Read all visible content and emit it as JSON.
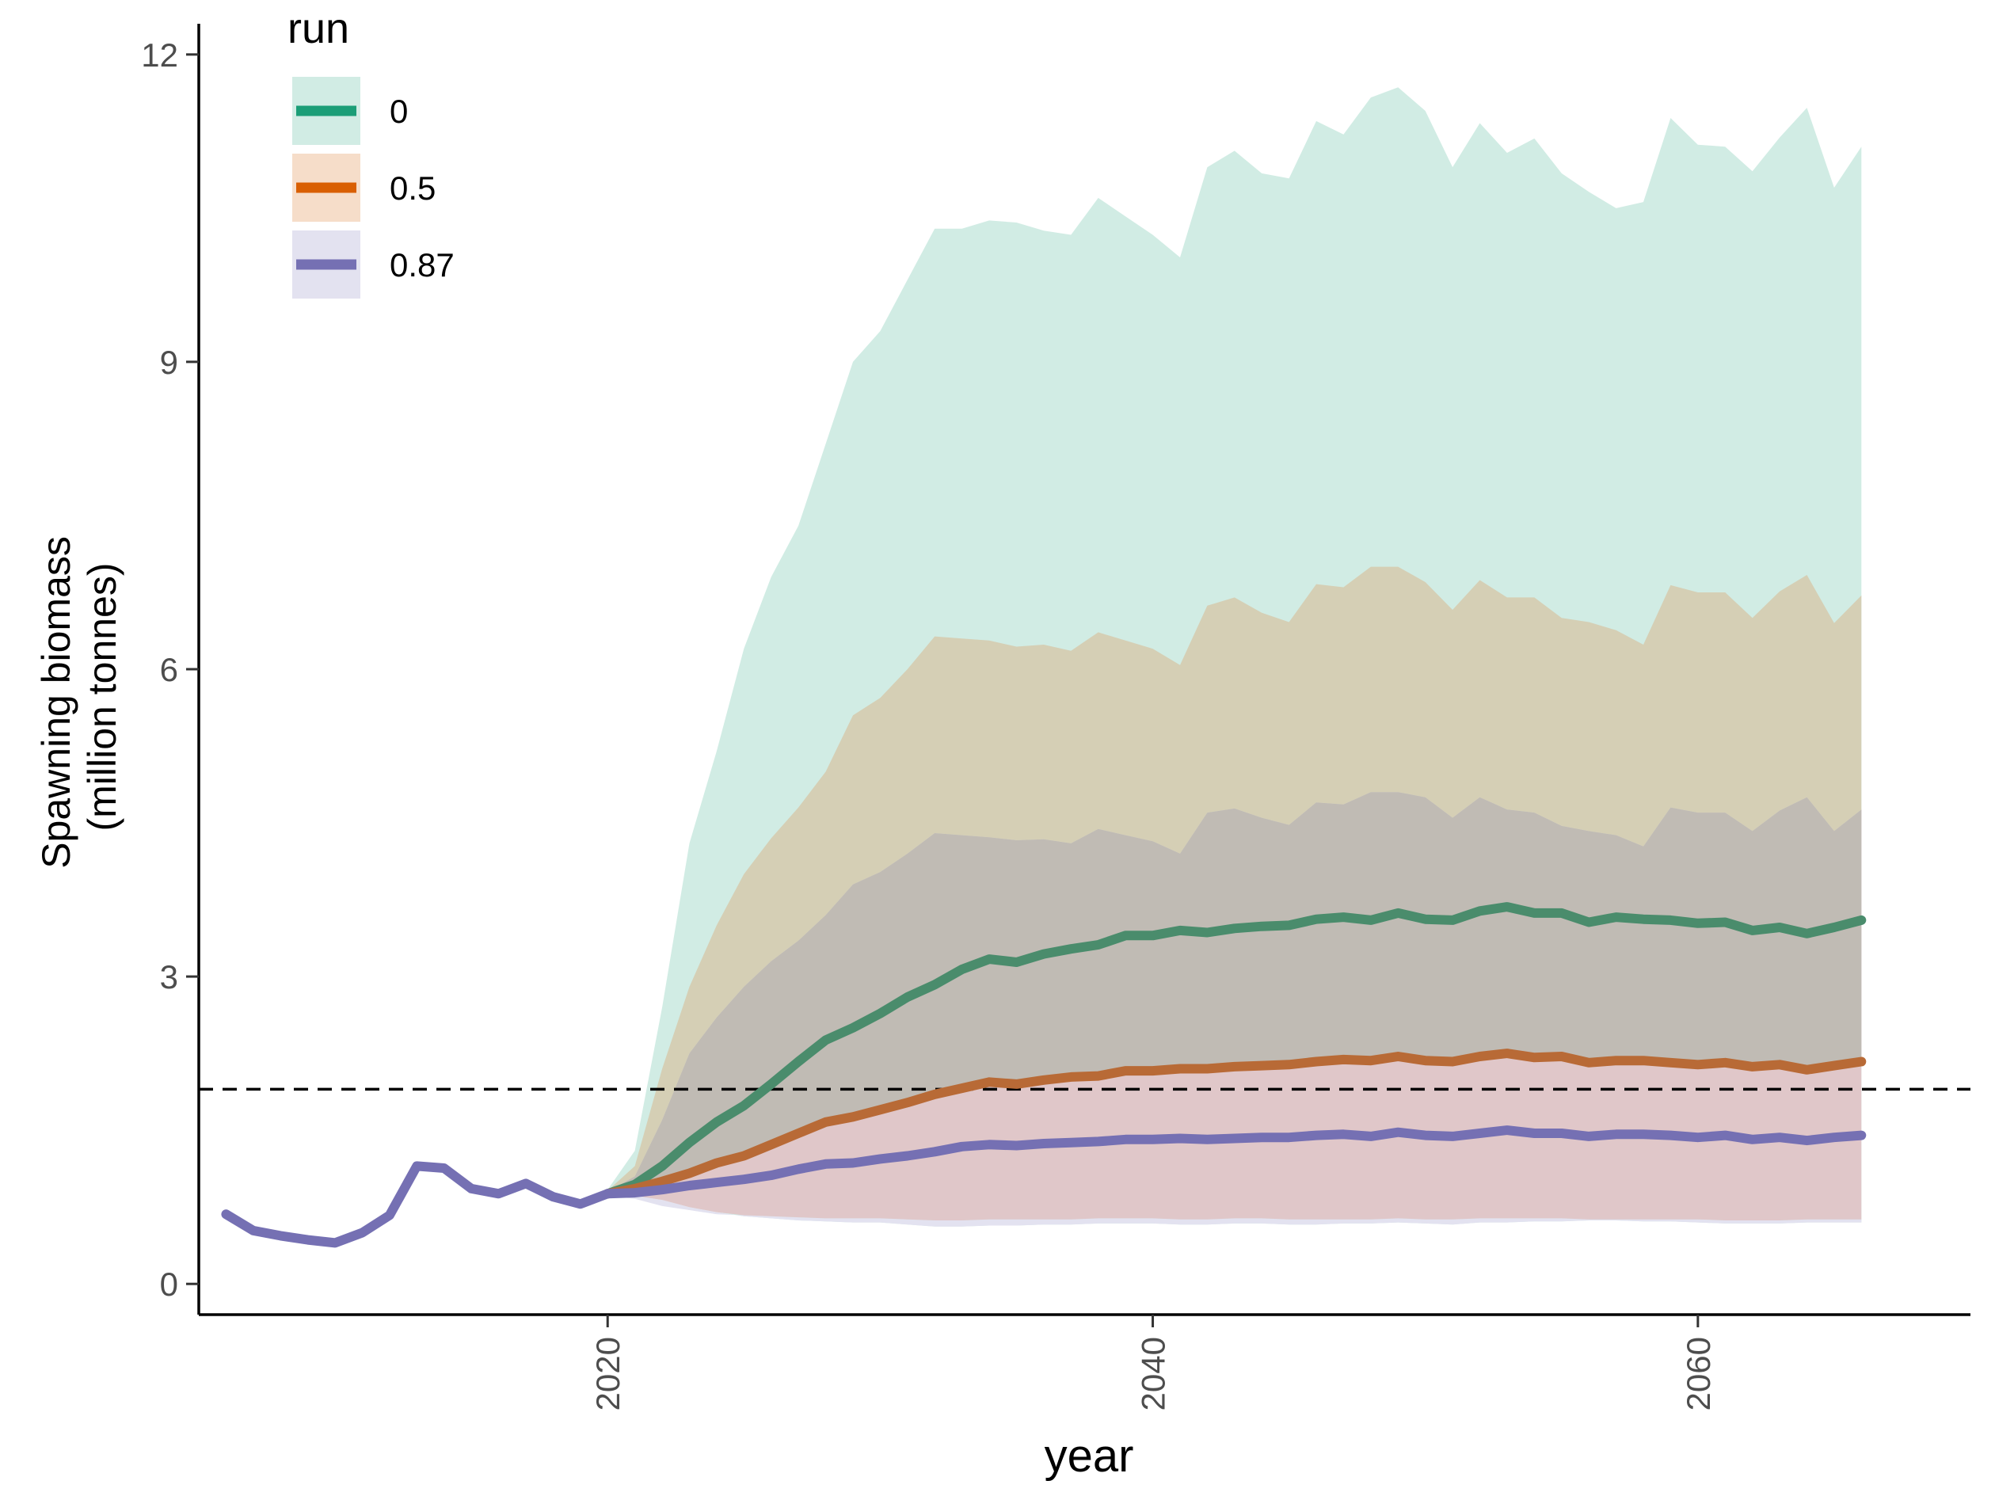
{
  "chart_data": {
    "type": "line",
    "title": "",
    "xlabel": "year",
    "ylabel": [
      "Spawning biomass",
      "(million tonnes)"
    ],
    "xlim": [
      2005,
      2070
    ],
    "ylim": [
      -0.3,
      12.3
    ],
    "xticks": [
      2020,
      2040,
      2060
    ],
    "yticks": [
      0,
      3,
      6,
      9,
      12
    ],
    "reference_line": {
      "y": 1.9,
      "style": "dashed",
      "color": "#000000"
    },
    "legend": {
      "title": "run",
      "position": "top-left",
      "entries": [
        {
          "label": "0",
          "color": "#1b9e77",
          "band_color": "#d1ece4"
        },
        {
          "label": "0.5",
          "color": "#d95f02",
          "band_color": "#f6ddc9"
        },
        {
          "label": "0.87",
          "color": "#7570b3",
          "band_color": "#e3e2f0"
        }
      ]
    },
    "historical": {
      "x": [
        2006,
        2007,
        2008,
        2009,
        2010,
        2011,
        2012,
        2013,
        2014,
        2015,
        2016,
        2017,
        2018,
        2019,
        2020
      ],
      "y": [
        0.68,
        0.52,
        0.47,
        0.43,
        0.4,
        0.5,
        0.67,
        1.15,
        1.13,
        0.93,
        0.88,
        0.98,
        0.85,
        0.78,
        0.88
      ]
    },
    "projection_x": [
      2020,
      2021,
      2022,
      2023,
      2024,
      2025,
      2026,
      2027,
      2028,
      2029,
      2030,
      2031,
      2032,
      2033,
      2034,
      2035,
      2036,
      2037,
      2038,
      2039,
      2040,
      2041,
      2042,
      2043,
      2044,
      2045,
      2046,
      2047,
      2048,
      2049,
      2050,
      2051,
      2052,
      2053,
      2054,
      2055,
      2056,
      2057,
      2058,
      2059,
      2060,
      2061,
      2062,
      2063,
      2064,
      2065,
      2066
    ],
    "series": [
      {
        "name": "0",
        "median": [
          0.88,
          0.97,
          1.15,
          1.38,
          1.58,
          1.74,
          1.95,
          2.17,
          2.38,
          2.5,
          2.64,
          2.8,
          2.92,
          3.07,
          3.17,
          3.14,
          3.22,
          3.27,
          3.31,
          3.4,
          3.4,
          3.45,
          3.43,
          3.47,
          3.49,
          3.5,
          3.56,
          3.58,
          3.55,
          3.62,
          3.56,
          3.55,
          3.64,
          3.68,
          3.62,
          3.62,
          3.53,
          3.58,
          3.56,
          3.55,
          3.52,
          3.53,
          3.45,
          3.48,
          3.42,
          3.48,
          3.55
        ],
        "upper": [
          0.92,
          1.3,
          2.7,
          4.3,
          5.2,
          6.2,
          6.9,
          7.4,
          8.2,
          9.0,
          9.3,
          9.8,
          10.3,
          10.3,
          10.38,
          10.36,
          10.28,
          10.24,
          10.6,
          10.42,
          10.24,
          10.02,
          10.9,
          11.06,
          10.84,
          10.79,
          11.35,
          11.22,
          11.58,
          11.68,
          11.45,
          10.9,
          11.33,
          11.04,
          11.18,
          10.84,
          10.66,
          10.5,
          10.56,
          11.38,
          11.12,
          11.1,
          10.86,
          11.19,
          11.48,
          10.7,
          11.1
        ],
        "lower": [
          0.86,
          0.86,
          0.82,
          0.75,
          0.7,
          0.66,
          0.64,
          0.62,
          0.61,
          0.6,
          0.6,
          0.58,
          0.56,
          0.56,
          0.57,
          0.57,
          0.58,
          0.58,
          0.59,
          0.59,
          0.59,
          0.58,
          0.58,
          0.59,
          0.59,
          0.58,
          0.58,
          0.59,
          0.59,
          0.6,
          0.59,
          0.58,
          0.6,
          0.6,
          0.61,
          0.61,
          0.62,
          0.62,
          0.61,
          0.61,
          0.6,
          0.59,
          0.59,
          0.59,
          0.6,
          0.6,
          0.6
        ]
      },
      {
        "name": "0.5",
        "median": [
          0.88,
          0.93,
          1.0,
          1.08,
          1.18,
          1.25,
          1.36,
          1.47,
          1.58,
          1.63,
          1.7,
          1.77,
          1.85,
          1.91,
          1.97,
          1.95,
          1.99,
          2.02,
          2.03,
          2.08,
          2.08,
          2.1,
          2.1,
          2.12,
          2.13,
          2.14,
          2.17,
          2.19,
          2.18,
          2.22,
          2.18,
          2.17,
          2.22,
          2.25,
          2.21,
          2.22,
          2.16,
          2.18,
          2.18,
          2.16,
          2.14,
          2.16,
          2.12,
          2.14,
          2.09,
          2.13,
          2.17
        ],
        "upper": [
          0.91,
          1.15,
          2.1,
          2.9,
          3.5,
          4.0,
          4.35,
          4.65,
          5.0,
          5.55,
          5.72,
          6.0,
          6.32,
          6.3,
          6.28,
          6.22,
          6.24,
          6.18,
          6.36,
          6.28,
          6.2,
          6.04,
          6.62,
          6.7,
          6.55,
          6.46,
          6.83,
          6.8,
          7.0,
          7.0,
          6.85,
          6.58,
          6.87,
          6.7,
          6.7,
          6.5,
          6.46,
          6.38,
          6.24,
          6.82,
          6.75,
          6.75,
          6.5,
          6.76,
          6.92,
          6.45,
          6.72
        ]
      },
      {
        "name": "0.87",
        "median": [
          0.88,
          0.89,
          0.92,
          0.96,
          0.99,
          1.02,
          1.06,
          1.12,
          1.17,
          1.18,
          1.22,
          1.25,
          1.29,
          1.34,
          1.36,
          1.35,
          1.37,
          1.38,
          1.39,
          1.41,
          1.41,
          1.42,
          1.41,
          1.42,
          1.43,
          1.43,
          1.45,
          1.46,
          1.44,
          1.48,
          1.45,
          1.44,
          1.47,
          1.5,
          1.47,
          1.47,
          1.44,
          1.46,
          1.46,
          1.45,
          1.43,
          1.45,
          1.41,
          1.43,
          1.4,
          1.43,
          1.45
        ],
        "upper": [
          0.9,
          1.05,
          1.6,
          2.25,
          2.6,
          2.9,
          3.15,
          3.35,
          3.6,
          3.9,
          4.02,
          4.2,
          4.4,
          4.38,
          4.36,
          4.33,
          4.34,
          4.3,
          4.44,
          4.38,
          4.32,
          4.2,
          4.6,
          4.64,
          4.55,
          4.48,
          4.7,
          4.68,
          4.8,
          4.8,
          4.75,
          4.55,
          4.75,
          4.63,
          4.6,
          4.47,
          4.42,
          4.38,
          4.27,
          4.65,
          4.6,
          4.6,
          4.42,
          4.62,
          4.75,
          4.42,
          4.63
        ],
        "lower": [
          0.86,
          0.83,
          0.76,
          0.72,
          0.68,
          0.67,
          0.66,
          0.65,
          0.64,
          0.64,
          0.64,
          0.63,
          0.62,
          0.62,
          0.63,
          0.63,
          0.63,
          0.63,
          0.64,
          0.64,
          0.64,
          0.63,
          0.63,
          0.64,
          0.64,
          0.63,
          0.63,
          0.63,
          0.63,
          0.64,
          0.63,
          0.63,
          0.64,
          0.64,
          0.64,
          0.64,
          0.63,
          0.63,
          0.63,
          0.63,
          0.63,
          0.62,
          0.62,
          0.62,
          0.63,
          0.63,
          0.63
        ]
      }
    ],
    "overlap_colors": {
      "band_0_and_05": "#d5cfb5",
      "all_three": "#c0bbb4",
      "band_05_and_087_low": "#e0c7c9"
    }
  }
}
